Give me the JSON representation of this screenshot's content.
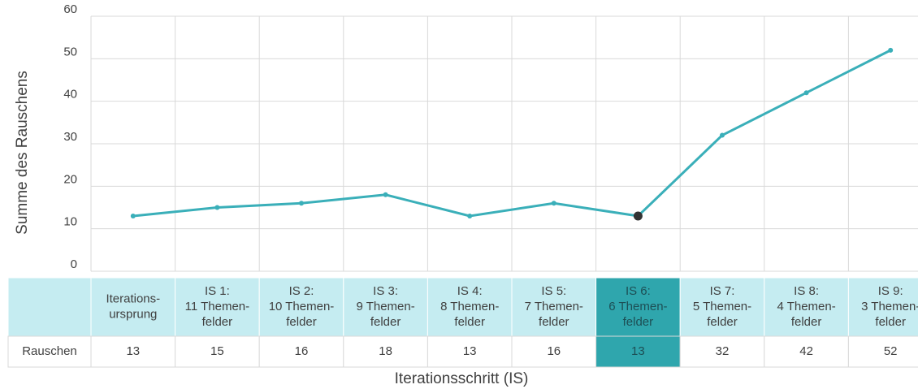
{
  "chart_data": {
    "type": "line",
    "y_label": "Summe des Rauschens",
    "x_label": "Iterationsschritt (IS)",
    "table_row_label": "Rauschen",
    "categories": [
      [
        "Iterations-",
        "ursprung"
      ],
      [
        "IS 1:",
        "11 Themen-",
        "felder"
      ],
      [
        "IS 2:",
        "10 Themen-",
        "felder"
      ],
      [
        "IS 3:",
        "9 Themen-",
        "felder"
      ],
      [
        "IS 4:",
        "8 Themen-",
        "felder"
      ],
      [
        "IS 5:",
        "7 Themen-",
        "felder"
      ],
      [
        "IS 6:",
        "6 Themen-",
        "felder"
      ],
      [
        "IS 7:",
        "5 Themen-",
        "felder"
      ],
      [
        "IS 8:",
        "4 Themen-",
        "felder"
      ],
      [
        "IS 9:",
        "3 Themen-",
        "felder"
      ]
    ],
    "values": [
      13,
      15,
      16,
      18,
      13,
      16,
      13,
      32,
      42,
      52
    ],
    "color": "#3aafb9",
    "highlight_index": 6,
    "highlight_color": "#2fa6ad",
    "ylim": [
      0,
      60
    ],
    "yticks": [
      0,
      10,
      20,
      30,
      40,
      50,
      60
    ],
    "grid": true
  }
}
